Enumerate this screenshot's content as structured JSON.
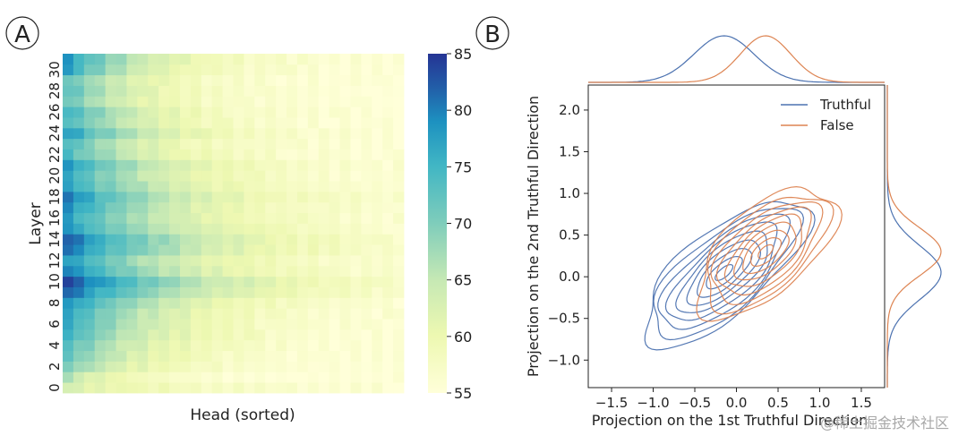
{
  "panel_labels": {
    "a": "A",
    "b": "B"
  },
  "watermark": "@稀土掘金技术社区",
  "chart_data": [
    {
      "type": "heatmap",
      "panel": "A",
      "xlabel": "Head (sorted)",
      "ylabel": "Layer",
      "y_ticks": [
        "0",
        "2",
        "4",
        "6",
        "8",
        "10",
        "12",
        "14",
        "16",
        "18",
        "20",
        "22",
        "24",
        "26",
        "28",
        "30"
      ],
      "n_layers": 32,
      "n_heads": 32,
      "colorbar": {
        "ticks": [
          "55",
          "60",
          "65",
          "70",
          "75",
          "80",
          "85"
        ],
        "min": 55,
        "max": 85,
        "colormap": "YlGnBu"
      },
      "row_max_accuracy": [
        63,
        66,
        70,
        72,
        73,
        75,
        76,
        77,
        79,
        82,
        84,
        80,
        78,
        81,
        82,
        78,
        77,
        79,
        80,
        77,
        76,
        78,
        74,
        74,
        78,
        74,
        75,
        72,
        73,
        72,
        77,
        78
      ],
      "row_decay": [
        0.3,
        0.6,
        0.48,
        0.45,
        0.42,
        0.4,
        0.4,
        0.38,
        0.36,
        0.3,
        0.28,
        0.33,
        0.34,
        0.3,
        0.3,
        0.32,
        0.34,
        0.36,
        0.33,
        0.36,
        0.38,
        0.38,
        0.42,
        0.45,
        0.42,
        0.45,
        0.46,
        0.5,
        0.5,
        0.5,
        0.48,
        0.45
      ]
    },
    {
      "type": "scatter",
      "panel": "B",
      "subtype": "kde-joint",
      "xlabel": "Projection on the 1st Truthful Direction",
      "ylabel": "Projection on the 2nd Truthful Direction",
      "x_ticks": [
        "−1.5",
        "−1.0",
        "−0.5",
        "0.0",
        "0.5",
        "1.0",
        "1.5"
      ],
      "y_ticks": [
        "−1.0",
        "−0.5",
        "0.0",
        "0.5",
        "1.0",
        "1.5",
        "2.0"
      ],
      "xlim": [
        -1.78,
        1.78
      ],
      "ylim": [
        -1.33,
        2.3
      ],
      "legend": "top-right",
      "series": [
        {
          "name": "Truthful",
          "color": "#4c72b0",
          "mean": [
            -0.15,
            0.05
          ],
          "sd": [
            0.38,
            0.34
          ],
          "corr": 0.72,
          "levels": 9
        },
        {
          "name": "False",
          "color": "#dd8452",
          "mean": [
            0.35,
            0.3
          ],
          "sd": [
            0.32,
            0.3
          ],
          "corr": 0.6,
          "levels": 9
        }
      ]
    }
  ]
}
